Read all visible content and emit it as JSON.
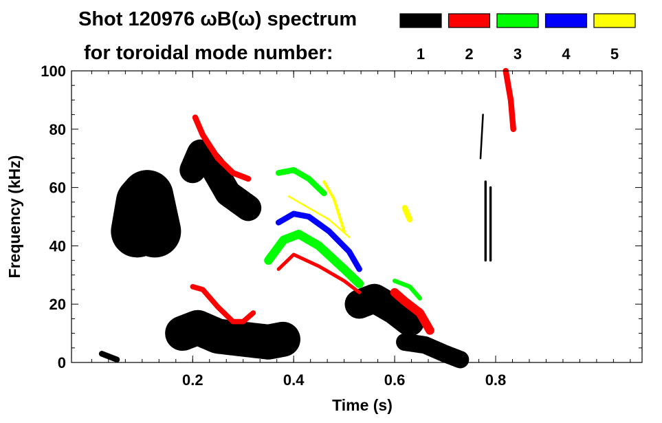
{
  "chart_data": {
    "type": "heatmap",
    "title": "Shot 120976 ωB(ω) spectrum",
    "legend_title": "for toroidal mode number:",
    "legend": [
      {
        "label": "1",
        "color": "#000000"
      },
      {
        "label": "2",
        "color": "#ff0000"
      },
      {
        "label": "3",
        "color": "#00ff00"
      },
      {
        "label": "4",
        "color": "#0000ff"
      },
      {
        "label": "5",
        "color": "#ffff00"
      }
    ],
    "legend_placement": "top-right",
    "xlabel": "Time (s)",
    "ylabel": "Frequency (kHz)",
    "xlim": [
      -0.04,
      1.09
    ],
    "ylim": [
      0,
      100
    ],
    "xticks": [
      "0.2",
      "0.4",
      "0.6",
      "0.8"
    ],
    "xtick_values": [
      0.2,
      0.4,
      0.6,
      0.8
    ],
    "yticks": [
      "0",
      "20",
      "40",
      "60",
      "80",
      "100"
    ],
    "ytick_values": [
      0,
      20,
      40,
      60,
      80,
      100
    ],
    "features": [
      {
        "mode": 1,
        "t": [
          0.09,
          0.1,
          0.11,
          0.125
        ],
        "f": [
          45,
          55,
          57,
          45
        ],
        "band_khz": 18
      },
      {
        "mode": 1,
        "t": [
          0.2,
          0.215,
          0.24,
          0.27,
          0.31
        ],
        "f": [
          66,
          72,
          67,
          58,
          53
        ],
        "band_khz": 9
      },
      {
        "mode": 1,
        "t": [
          0.18,
          0.21,
          0.25,
          0.3,
          0.35,
          0.38
        ],
        "f": [
          10,
          12,
          9,
          8,
          7,
          8
        ],
        "band_khz": 12
      },
      {
        "mode": 1,
        "t": [
          0.53,
          0.56,
          0.6,
          0.63
        ],
        "f": [
          20,
          22,
          18,
          14
        ],
        "band_khz": 10
      },
      {
        "mode": 1,
        "t": [
          0.62,
          0.66,
          0.7,
          0.73
        ],
        "f": [
          7,
          6,
          3,
          1
        ],
        "band_khz": 6
      },
      {
        "mode": 1,
        "t": [
          0.78,
          0.78
        ],
        "f": [
          35,
          62
        ],
        "band_khz": 0.8
      },
      {
        "mode": 1,
        "t": [
          0.79,
          0.79
        ],
        "f": [
          35,
          60
        ],
        "band_khz": 0.8
      },
      {
        "mode": 1,
        "t": [
          0.77,
          0.775
        ],
        "f": [
          70,
          85
        ],
        "band_khz": 0.6
      },
      {
        "mode": 1,
        "t": [
          0.02,
          0.05
        ],
        "f": [
          3,
          1
        ],
        "band_khz": 2
      },
      {
        "mode": 2,
        "t": [
          0.205,
          0.22,
          0.25,
          0.28,
          0.31
        ],
        "f": [
          84,
          78,
          70,
          65,
          63
        ],
        "band_khz": 2
      },
      {
        "mode": 2,
        "t": [
          0.2,
          0.22,
          0.25,
          0.28,
          0.3,
          0.32
        ],
        "f": [
          26,
          25,
          19,
          14,
          14,
          17
        ],
        "band_khz": 1.8
      },
      {
        "mode": 2,
        "t": [
          0.37,
          0.4,
          0.45,
          0.5,
          0.53
        ],
        "f": [
          32,
          37,
          33,
          28,
          24
        ],
        "band_khz": 1.2
      },
      {
        "mode": 2,
        "t": [
          0.6,
          0.62,
          0.65,
          0.67
        ],
        "f": [
          24,
          21,
          17,
          11
        ],
        "band_khz": 3
      },
      {
        "mode": 2,
        "t": [
          0.82,
          0.83,
          0.835
        ],
        "f": [
          100,
          90,
          80
        ],
        "band_khz": 2
      },
      {
        "mode": 3,
        "t": [
          0.37,
          0.4,
          0.43,
          0.46
        ],
        "f": [
          65,
          66,
          63,
          58
        ],
        "band_khz": 2
      },
      {
        "mode": 3,
        "t": [
          0.35,
          0.38,
          0.41,
          0.45,
          0.5,
          0.53
        ],
        "f": [
          35,
          42,
          44,
          40,
          32,
          27
        ],
        "band_khz": 3
      },
      {
        "mode": 3,
        "t": [
          0.6,
          0.63,
          0.65
        ],
        "f": [
          28,
          26,
          22
        ],
        "band_khz": 1.5
      },
      {
        "mode": 4,
        "t": [
          0.37,
          0.4,
          0.43,
          0.47,
          0.51,
          0.53
        ],
        "f": [
          48,
          51,
          50,
          45,
          38,
          32
        ],
        "band_khz": 2
      },
      {
        "mode": 5,
        "t": [
          0.46,
          0.48,
          0.5
        ],
        "f": [
          62,
          56,
          45
        ],
        "band_khz": 1
      },
      {
        "mode": 5,
        "t": [
          0.62,
          0.63
        ],
        "f": [
          53,
          49
        ],
        "band_khz": 2
      },
      {
        "mode": 5,
        "t": [
          0.39,
          0.43,
          0.47,
          0.51
        ],
        "f": [
          57,
          53,
          49,
          43
        ],
        "band_khz": 0.6
      }
    ]
  }
}
